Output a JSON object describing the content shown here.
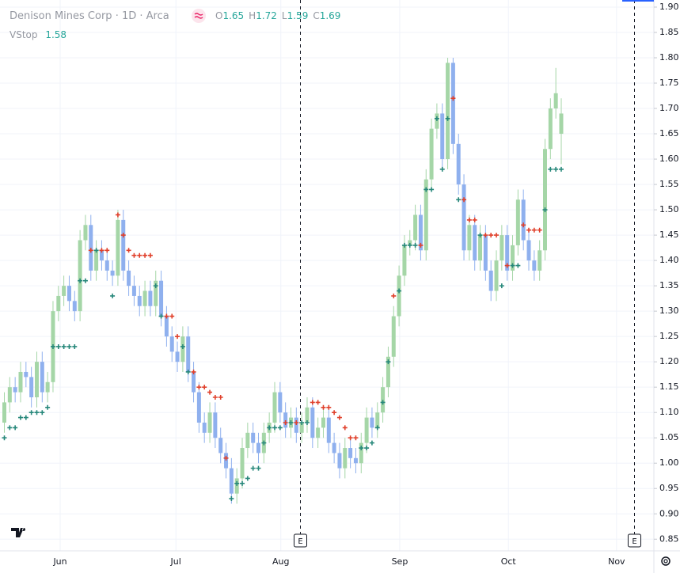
{
  "chart_data": {
    "type": "candlestick",
    "title": "Denison Mines Corp · 1D · Arca",
    "ohlc_labels": [
      "O",
      "H",
      "L",
      "C"
    ],
    "indicator_name": "VStop",
    "up_color": "#a5d6a7",
    "down_color": "#8fb0ee",
    "stop_up_color": "#26877a",
    "stop_down_color": "#e0402b",
    "ylim": [
      0.827,
      1.914
    ],
    "yticks": [
      {
        "value": 0.85,
        "label": "0.85"
      },
      {
        "value": 0.9,
        "label": "0.90"
      },
      {
        "value": 0.95,
        "label": "0.95"
      },
      {
        "value": 1.0,
        "label": "1.00"
      },
      {
        "value": 1.05,
        "label": "1.05"
      },
      {
        "value": 1.1,
        "label": "1.10"
      },
      {
        "value": 1.15,
        "label": "1.15"
      },
      {
        "value": 1.2,
        "label": "1.20"
      },
      {
        "value": 1.25,
        "label": "1.25"
      },
      {
        "value": 1.3,
        "label": "1.30"
      },
      {
        "value": 1.35,
        "label": "1.35"
      },
      {
        "value": 1.4,
        "label": "1.40"
      },
      {
        "value": 1.45,
        "label": "1.45"
      },
      {
        "value": 1.5,
        "label": "1.50"
      },
      {
        "value": 1.55,
        "label": "1.55"
      },
      {
        "value": 1.6,
        "label": "1.60"
      },
      {
        "value": 1.65,
        "label": "1.65"
      },
      {
        "value": 1.7,
        "label": "1.70"
      },
      {
        "value": 1.75,
        "label": "1.75"
      },
      {
        "value": 1.8,
        "label": "1.80"
      },
      {
        "value": 1.85,
        "label": "1.85"
      },
      {
        "value": 1.9,
        "label": "1.90"
      }
    ],
    "xticks": [
      {
        "value": 10.4,
        "label": "Jun"
      },
      {
        "value": 31.8,
        "label": "Jul"
      },
      {
        "value": 51.2,
        "label": "Aug"
      },
      {
        "value": 73.2,
        "label": "Sep"
      },
      {
        "value": 93.3,
        "label": "Oct"
      },
      {
        "value": 113.3,
        "label": "Nov"
      }
    ],
    "earnings": [
      {
        "value": 54.8,
        "label": "E"
      },
      {
        "value": 116.5,
        "label": "E"
      }
    ],
    "grid": true,
    "ohlc": [
      [
        1.08,
        1.14,
        1.06,
        1.12
      ],
      [
        1.12,
        1.17,
        1.1,
        1.15
      ],
      [
        1.15,
        1.17,
        1.12,
        1.14
      ],
      [
        1.14,
        1.2,
        1.12,
        1.18
      ],
      [
        1.18,
        1.2,
        1.15,
        1.17
      ],
      [
        1.17,
        1.19,
        1.11,
        1.13
      ],
      [
        1.13,
        1.22,
        1.11,
        1.2
      ],
      [
        1.2,
        1.22,
        1.12,
        1.14
      ],
      [
        1.14,
        1.18,
        1.12,
        1.16
      ],
      [
        1.16,
        1.32,
        1.14,
        1.3
      ],
      [
        1.3,
        1.35,
        1.28,
        1.33
      ],
      [
        1.33,
        1.37,
        1.31,
        1.35
      ],
      [
        1.35,
        1.37,
        1.3,
        1.32
      ],
      [
        1.32,
        1.34,
        1.28,
        1.3
      ],
      [
        1.3,
        1.46,
        1.28,
        1.44
      ],
      [
        1.44,
        1.49,
        1.42,
        1.47
      ],
      [
        1.47,
        1.49,
        1.36,
        1.38
      ],
      [
        1.38,
        1.44,
        1.36,
        1.42
      ],
      [
        1.42,
        1.44,
        1.38,
        1.4
      ],
      [
        1.4,
        1.42,
        1.36,
        1.38
      ],
      [
        1.38,
        1.4,
        1.35,
        1.37
      ],
      [
        1.37,
        1.5,
        1.35,
        1.48
      ],
      [
        1.48,
        1.5,
        1.36,
        1.38
      ],
      [
        1.38,
        1.4,
        1.33,
        1.35
      ],
      [
        1.35,
        1.37,
        1.31,
        1.33
      ],
      [
        1.33,
        1.35,
        1.29,
        1.31
      ],
      [
        1.31,
        1.36,
        1.29,
        1.34
      ],
      [
        1.34,
        1.36,
        1.29,
        1.31
      ],
      [
        1.31,
        1.38,
        1.29,
        1.36
      ],
      [
        1.36,
        1.38,
        1.27,
        1.29
      ],
      [
        1.29,
        1.31,
        1.23,
        1.25
      ],
      [
        1.25,
        1.27,
        1.2,
        1.22
      ],
      [
        1.22,
        1.24,
        1.18,
        1.2
      ],
      [
        1.2,
        1.27,
        1.18,
        1.25
      ],
      [
        1.25,
        1.27,
        1.16,
        1.18
      ],
      [
        1.18,
        1.2,
        1.12,
        1.14
      ],
      [
        1.14,
        1.16,
        1.06,
        1.08
      ],
      [
        1.08,
        1.1,
        1.04,
        1.06
      ],
      [
        1.06,
        1.12,
        1.04,
        1.1
      ],
      [
        1.1,
        1.12,
        1.03,
        1.05
      ],
      [
        1.05,
        1.07,
        1.0,
        1.02
      ],
      [
        1.02,
        1.04,
        0.97,
        0.99
      ],
      [
        0.99,
        1.01,
        0.92,
        0.94
      ],
      [
        0.94,
        0.99,
        0.92,
        0.97
      ],
      [
        0.97,
        1.05,
        0.95,
        1.03
      ],
      [
        1.03,
        1.08,
        1.01,
        1.06
      ],
      [
        1.06,
        1.08,
        1.02,
        1.04
      ],
      [
        1.04,
        1.06,
        1.0,
        1.02
      ],
      [
        1.02,
        1.08,
        1.0,
        1.06
      ],
      [
        1.06,
        1.1,
        1.04,
        1.08
      ],
      [
        1.08,
        1.16,
        1.06,
        1.14
      ],
      [
        1.14,
        1.16,
        1.08,
        1.1
      ],
      [
        1.1,
        1.12,
        1.05,
        1.07
      ],
      [
        1.07,
        1.11,
        1.05,
        1.09
      ],
      [
        1.09,
        1.11,
        1.04,
        1.06
      ],
      [
        1.06,
        1.1,
        1.04,
        1.08
      ],
      [
        1.08,
        1.13,
        1.06,
        1.11
      ],
      [
        1.11,
        1.13,
        1.03,
        1.05
      ],
      [
        1.05,
        1.09,
        1.03,
        1.07
      ],
      [
        1.07,
        1.11,
        1.05,
        1.09
      ],
      [
        1.09,
        1.11,
        1.02,
        1.04
      ],
      [
        1.04,
        1.06,
        1.0,
        1.02
      ],
      [
        1.02,
        1.04,
        0.97,
        0.99
      ],
      [
        0.99,
        1.05,
        0.97,
        1.03
      ],
      [
        1.03,
        1.05,
        0.99,
        1.01
      ],
      [
        1.01,
        1.03,
        0.98,
        1.0
      ],
      [
        1.0,
        1.06,
        0.98,
        1.04
      ],
      [
        1.04,
        1.11,
        1.02,
        1.09
      ],
      [
        1.09,
        1.11,
        1.05,
        1.07
      ],
      [
        1.07,
        1.12,
        1.05,
        1.1
      ],
      [
        1.1,
        1.17,
        1.08,
        1.15
      ],
      [
        1.15,
        1.23,
        1.13,
        1.21
      ],
      [
        1.21,
        1.31,
        1.19,
        1.29
      ],
      [
        1.29,
        1.39,
        1.27,
        1.37
      ],
      [
        1.37,
        1.45,
        1.35,
        1.43
      ],
      [
        1.43,
        1.46,
        1.41,
        1.44
      ],
      [
        1.44,
        1.51,
        1.42,
        1.49
      ],
      [
        1.49,
        1.51,
        1.4,
        1.42
      ],
      [
        1.42,
        1.58,
        1.4,
        1.56
      ],
      [
        1.56,
        1.68,
        1.54,
        1.66
      ],
      [
        1.66,
        1.71,
        1.64,
        1.69
      ],
      [
        1.69,
        1.71,
        1.58,
        1.6
      ],
      [
        1.6,
        1.8,
        1.58,
        1.79
      ],
      [
        1.79,
        1.8,
        1.61,
        1.63
      ],
      [
        1.63,
        1.65,
        1.53,
        1.55
      ],
      [
        1.55,
        1.57,
        1.4,
        1.42
      ],
      [
        1.42,
        1.49,
        1.4,
        1.47
      ],
      [
        1.47,
        1.49,
        1.38,
        1.4
      ],
      [
        1.4,
        1.47,
        1.38,
        1.45
      ],
      [
        1.45,
        1.47,
        1.36,
        1.38
      ],
      [
        1.38,
        1.4,
        1.32,
        1.34
      ],
      [
        1.34,
        1.42,
        1.32,
        1.4
      ],
      [
        1.4,
        1.47,
        1.38,
        1.45
      ],
      [
        1.45,
        1.47,
        1.36,
        1.38
      ],
      [
        1.38,
        1.45,
        1.36,
        1.43
      ],
      [
        1.43,
        1.54,
        1.41,
        1.52
      ],
      [
        1.52,
        1.54,
        1.42,
        1.44
      ],
      [
        1.44,
        1.46,
        1.38,
        1.4
      ],
      [
        1.4,
        1.42,
        1.36,
        1.38
      ],
      [
        1.38,
        1.44,
        1.36,
        1.42
      ],
      [
        1.42,
        1.64,
        1.4,
        1.62
      ],
      [
        1.62,
        1.72,
        1.6,
        1.7
      ],
      [
        1.7,
        1.78,
        1.68,
        1.73
      ],
      [
        1.65,
        1.72,
        1.59,
        1.69
      ]
    ],
    "vstop": [
      1.05,
      1.07,
      1.07,
      1.09,
      1.09,
      1.1,
      1.1,
      1.1,
      1.11,
      1.23,
      1.23,
      1.23,
      1.23,
      1.23,
      1.36,
      1.36,
      1.42,
      1.42,
      1.42,
      1.42,
      1.33,
      1.49,
      1.45,
      1.42,
      1.41,
      1.41,
      1.41,
      1.41,
      1.35,
      1.29,
      1.29,
      1.29,
      1.25,
      1.23,
      1.18,
      1.18,
      1.15,
      1.15,
      1.14,
      1.13,
      1.13,
      1.01,
      0.93,
      0.96,
      0.96,
      0.97,
      0.99,
      0.99,
      1.04,
      1.07,
      1.07,
      1.07,
      1.08,
      1.08,
      1.08,
      1.08,
      1.08,
      1.12,
      1.12,
      1.11,
      1.11,
      1.1,
      1.09,
      1.07,
      1.05,
      1.05,
      1.03,
      1.03,
      1.04,
      1.07,
      1.12,
      1.2,
      1.33,
      1.34,
      1.43,
      1.43,
      1.43,
      1.43,
      1.54,
      1.54,
      1.68,
      1.58,
      1.68,
      1.72,
      1.52,
      1.52,
      1.48,
      1.48,
      1.45,
      1.45,
      1.45,
      1.45,
      1.35,
      1.39,
      1.39,
      1.39,
      1.47,
      1.46,
      1.46,
      1.46,
      1.5,
      1.58,
      1.58,
      1.58
    ]
  }
}
